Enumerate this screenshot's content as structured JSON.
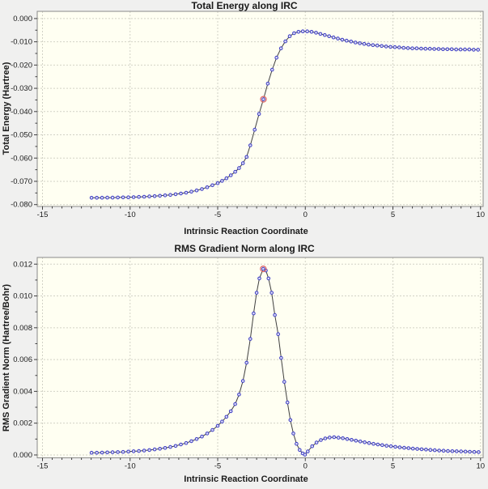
{
  "colors": {
    "window_bg": "#f0f0ef",
    "plot_bg": "#fffff2",
    "grid": "#d2d2c6",
    "border": "#8a8a8a",
    "line": "#3f3f3f",
    "marker_stroke": "#3b3bc4",
    "marker_fill": "#dbdbf5",
    "highlight": "#e06a6a",
    "text": "#1a1a1a"
  },
  "chart_data": [
    {
      "type": "line",
      "title": "Total Energy along IRC",
      "xlabel": "Intrinsic Reaction Coordinate",
      "ylabel": "Total Energy (Hartree)",
      "legend": null,
      "grid": "dashed-major",
      "xlim": [
        -15.3,
        10.15
      ],
      "ylim": [
        -0.0808,
        0.0031
      ],
      "x_tick_values": [
        -15,
        -10,
        -5,
        0,
        5,
        10
      ],
      "x_tick_labels": [
        "-15",
        "-10",
        "-5",
        "0",
        "5",
        "10"
      ],
      "y_tick_values": [
        0.0,
        -0.01,
        -0.02,
        -0.03,
        -0.04,
        -0.05,
        -0.06,
        -0.07,
        -0.08
      ],
      "y_tick_labels": [
        "0.000",
        "-0.010",
        "-0.020",
        "-0.030",
        "-0.040",
        "-0.050",
        "-0.060",
        "-0.070",
        "-0.080"
      ],
      "highlight": {
        "x": -2.39,
        "y": -0.0347
      },
      "x": [
        -12.2,
        -11.9,
        -11.6,
        -11.3,
        -11.0,
        -10.7,
        -10.4,
        -10.1,
        -9.8,
        -9.5,
        -9.2,
        -8.9,
        -8.6,
        -8.3,
        -8.0,
        -7.7,
        -7.4,
        -7.1,
        -6.8,
        -6.5,
        -6.2,
        -5.9,
        -5.6,
        -5.3,
        -5.0,
        -4.75,
        -4.5,
        -4.25,
        -4.0,
        -3.78,
        -3.56,
        -3.35,
        -3.14,
        -2.89,
        -2.64,
        -2.39,
        -2.14,
        -1.89,
        -1.64,
        -1.39,
        -1.14,
        -0.89,
        -0.64,
        -0.39,
        -0.14,
        0.11,
        0.36,
        0.61,
        0.86,
        1.11,
        1.36,
        1.61,
        1.86,
        2.11,
        2.36,
        2.61,
        2.86,
        3.11,
        3.36,
        3.61,
        3.86,
        4.11,
        4.36,
        4.61,
        4.86,
        5.11,
        5.36,
        5.61,
        5.86,
        6.11,
        6.36,
        6.61,
        6.86,
        7.11,
        7.36,
        7.61,
        7.86,
        8.11,
        8.36,
        8.61,
        8.86,
        9.11,
        9.36,
        9.61,
        9.86
      ],
      "y": [
        -0.07709,
        -0.07707,
        -0.07705,
        -0.07702,
        -0.07699,
        -0.07695,
        -0.0769,
        -0.07685,
        -0.07678,
        -0.0767,
        -0.07661,
        -0.0765,
        -0.07637,
        -0.07621,
        -0.07603,
        -0.07581,
        -0.07555,
        -0.07524,
        -0.07487,
        -0.07443,
        -0.07391,
        -0.0733,
        -0.07256,
        -0.07169,
        -0.0708,
        -0.0698,
        -0.0687,
        -0.0674,
        -0.0659,
        -0.0643,
        -0.0622,
        -0.0595,
        -0.0545,
        -0.0478,
        -0.041,
        -0.0347,
        -0.028,
        -0.022,
        -0.0168,
        -0.0128,
        -0.0098,
        -0.0076,
        -0.0063,
        -0.0057,
        -0.0055,
        -0.0055,
        -0.0057,
        -0.0061,
        -0.0066,
        -0.0071,
        -0.0076,
        -0.0081,
        -0.0086,
        -0.0091,
        -0.0095,
        -0.0099,
        -0.0103,
        -0.0106,
        -0.0109,
        -0.0112,
        -0.0114,
        -0.0116,
        -0.0118,
        -0.012,
        -0.0122,
        -0.0123,
        -0.0124,
        -0.0126,
        -0.0127,
        -0.0128,
        -0.0128,
        -0.0129,
        -0.013,
        -0.013,
        -0.0131,
        -0.0131,
        -0.0132,
        -0.0132,
        -0.0132,
        -0.0133,
        -0.0133,
        -0.0133,
        -0.0133,
        -0.0134,
        -0.0134
      ]
    },
    {
      "type": "line",
      "title": "RMS Gradient Norm along IRC",
      "xlabel": "Intrinsic Reaction Coordinate",
      "ylabel": "RMS Gradient Norm (Hartree/Bohr)",
      "legend": null,
      "grid": "dashed-major",
      "xlim": [
        -15.3,
        10.15
      ],
      "ylim": [
        -0.00018,
        0.01242
      ],
      "x_tick_values": [
        -15,
        -10,
        -5,
        0,
        5,
        10
      ],
      "x_tick_labels": [
        "-15",
        "-10",
        "-5",
        "0",
        "5",
        "10"
      ],
      "y_tick_values": [
        0.012,
        0.01,
        0.008,
        0.006,
        0.004,
        0.002,
        0.0
      ],
      "y_tick_labels": [
        "0.012",
        "0.010",
        "0.008",
        "0.006",
        "0.004",
        "0.002",
        "0.000"
      ],
      "highlight": {
        "x": -2.4,
        "y": 0.0117
      },
      "x": [
        -12.2,
        -11.9,
        -11.6,
        -11.3,
        -11.0,
        -10.7,
        -10.4,
        -10.1,
        -9.8,
        -9.5,
        -9.2,
        -8.9,
        -8.6,
        -8.3,
        -8.0,
        -7.7,
        -7.4,
        -7.1,
        -6.8,
        -6.5,
        -6.2,
        -5.9,
        -5.6,
        -5.3,
        -5.0,
        -4.75,
        -4.5,
        -4.25,
        -4.0,
        -3.78,
        -3.56,
        -3.35,
        -3.14,
        -2.95,
        -2.78,
        -2.62,
        -2.4,
        -2.25,
        -2.1,
        -1.92,
        -1.74,
        -1.55,
        -1.38,
        -1.2,
        -1.02,
        -0.85,
        -0.68,
        -0.5,
        -0.32,
        -0.15,
        -0.02,
        0.14,
        0.39,
        0.64,
        0.89,
        1.14,
        1.39,
        1.64,
        1.89,
        2.14,
        2.39,
        2.64,
        2.89,
        3.14,
        3.39,
        3.64,
        3.89,
        4.14,
        4.39,
        4.64,
        4.89,
        5.14,
        5.39,
        5.64,
        5.89,
        6.14,
        6.39,
        6.64,
        6.89,
        7.14,
        7.39,
        7.64,
        7.89,
        8.14,
        8.39,
        8.64,
        8.89,
        9.14,
        9.39,
        9.64,
        9.89
      ],
      "y": [
        0.00014,
        0.00014,
        0.00015,
        0.00016,
        0.00017,
        0.00018,
        0.00019,
        0.00021,
        0.00023,
        0.00025,
        0.00028,
        0.00031,
        0.00035,
        0.00039,
        0.00044,
        0.0005,
        0.00057,
        0.00066,
        0.00075,
        0.00087,
        0.001,
        0.00116,
        0.00135,
        0.00157,
        0.00183,
        0.0021,
        0.0024,
        0.00275,
        0.0032,
        0.0038,
        0.00465,
        0.0058,
        0.0073,
        0.0089,
        0.0102,
        0.0111,
        0.0117,
        0.0116,
        0.0111,
        0.0102,
        0.0088,
        0.0076,
        0.0061,
        0.0046,
        0.0033,
        0.0022,
        0.00135,
        0.0007,
        0.00032,
        0.0001,
        2e-05,
        0.00022,
        0.00055,
        0.00078,
        0.00094,
        0.00104,
        0.0011,
        0.00112,
        0.00109,
        0.00105,
        0.001,
        0.00095,
        0.0009,
        0.00085,
        0.0008,
        0.00075,
        0.0007,
        0.00066,
        0.00062,
        0.00058,
        0.00055,
        0.00051,
        0.00048,
        0.00045,
        0.00043,
        0.0004,
        0.00038,
        0.00036,
        0.00034,
        0.00032,
        0.0003,
        0.00028,
        0.00027,
        0.00025,
        0.00024,
        0.00023,
        0.00022,
        0.00021,
        0.0002,
        0.00019,
        0.00018
      ]
    }
  ]
}
